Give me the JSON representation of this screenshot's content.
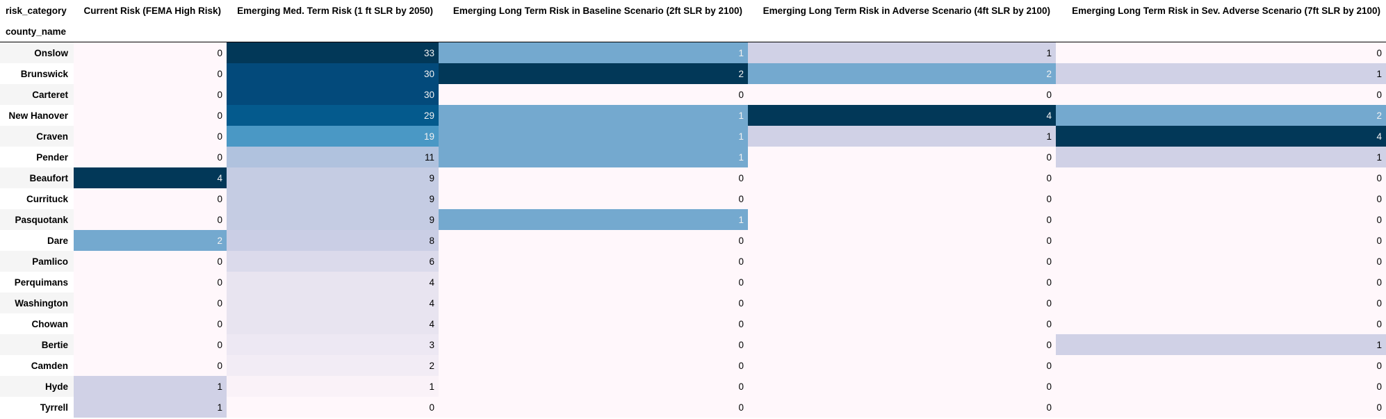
{
  "table": {
    "columns_index_name": "risk_category",
    "index_name": "county_name",
    "columns": [
      "Current Risk (FEMA High Risk)",
      "Emerging Med. Term Risk (1 ft SLR by 2050)",
      "Emerging Long Term Risk in Baseline Scenario (2ft SLR by 2100)",
      "Emerging Long Term Risk in Adverse Scenario (4ft SLR by 2100)",
      "Emerging Long Term Risk in Sev. Adverse Scenario (7ft SLR by 2100)"
    ],
    "rows": [
      {
        "county": "Onslow",
        "values": [
          0,
          33,
          1,
          1,
          0
        ]
      },
      {
        "county": "Brunswick",
        "values": [
          0,
          30,
          2,
          2,
          1
        ]
      },
      {
        "county": "Carteret",
        "values": [
          0,
          30,
          0,
          0,
          0
        ]
      },
      {
        "county": "New Hanover",
        "values": [
          0,
          29,
          1,
          4,
          2
        ]
      },
      {
        "county": "Craven",
        "values": [
          0,
          19,
          1,
          1,
          4
        ]
      },
      {
        "county": "Pender",
        "values": [
          0,
          11,
          1,
          0,
          1
        ]
      },
      {
        "county": "Beaufort",
        "values": [
          4,
          9,
          0,
          0,
          0
        ]
      },
      {
        "county": "Currituck",
        "values": [
          0,
          9,
          0,
          0,
          0
        ]
      },
      {
        "county": "Pasquotank",
        "values": [
          0,
          9,
          1,
          0,
          0
        ]
      },
      {
        "county": "Dare",
        "values": [
          2,
          8,
          0,
          0,
          0
        ]
      },
      {
        "county": "Pamlico",
        "values": [
          0,
          6,
          0,
          0,
          0
        ]
      },
      {
        "county": "Perquimans",
        "values": [
          0,
          4,
          0,
          0,
          0
        ]
      },
      {
        "county": "Washington",
        "values": [
          0,
          4,
          0,
          0,
          0
        ]
      },
      {
        "county": "Chowan",
        "values": [
          0,
          4,
          0,
          0,
          0
        ]
      },
      {
        "county": "Bertie",
        "values": [
          0,
          3,
          0,
          0,
          1
        ]
      },
      {
        "county": "Camden",
        "values": [
          0,
          2,
          0,
          0,
          0
        ]
      },
      {
        "county": "Hyde",
        "values": [
          1,
          1,
          0,
          0,
          0
        ]
      },
      {
        "county": "Tyrrell",
        "values": [
          1,
          0,
          0,
          0,
          0
        ]
      }
    ]
  },
  "colors": {
    "colormap": "PuBu",
    "cell_colors": [
      [
        "#fff7fb",
        "#023858",
        "#74a9cf",
        "#d0d1e6",
        "#fff7fb"
      ],
      [
        "#fff7fb",
        "#034a7b",
        "#023858",
        "#74a9cf",
        "#d0d1e6"
      ],
      [
        "#fff7fb",
        "#034a7b",
        "#fff7fb",
        "#fff7fb",
        "#fff7fb"
      ],
      [
        "#fff7fb",
        "#045a8d",
        "#74a9cf",
        "#023858",
        "#74a9cf"
      ],
      [
        "#fff7fb",
        "#4a98c5",
        "#74a9cf",
        "#d0d1e6",
        "#023858"
      ],
      [
        "#fff7fb",
        "#b0c2de",
        "#74a9cf",
        "#fff7fb",
        "#d0d1e6"
      ],
      [
        "#023858",
        "#c5cce3",
        "#fff7fb",
        "#fff7fb",
        "#fff7fb"
      ],
      [
        "#fff7fb",
        "#c5cce3",
        "#fff7fb",
        "#fff7fb",
        "#fff7fb"
      ],
      [
        "#fff7fb",
        "#c5cce3",
        "#74a9cf",
        "#fff7fb",
        "#fff7fb"
      ],
      [
        "#74a9cf",
        "#cacee5",
        "#fff7fb",
        "#fff7fb",
        "#fff7fb"
      ],
      [
        "#fff7fb",
        "#dbdaeb",
        "#fff7fb",
        "#fff7fb",
        "#fff7fb"
      ],
      [
        "#fff7fb",
        "#e8e4f0",
        "#fff7fb",
        "#fff7fb",
        "#fff7fb"
      ],
      [
        "#fff7fb",
        "#e8e4f0",
        "#fff7fb",
        "#fff7fb",
        "#fff7fb"
      ],
      [
        "#fff7fb",
        "#e8e4f0",
        "#fff7fb",
        "#fff7fb",
        "#fff7fb"
      ],
      [
        "#fff7fb",
        "#ede8f3",
        "#fff7fb",
        "#fff7fb",
        "#d0d1e6"
      ],
      [
        "#fff7fb",
        "#f2ecf5",
        "#fff7fb",
        "#fff7fb",
        "#fff7fb"
      ],
      [
        "#d0d1e6",
        "#faf2f8",
        "#fff7fb",
        "#fff7fb",
        "#fff7fb"
      ],
      [
        "#d0d1e6",
        "#fff7fb",
        "#fff7fb",
        "#fff7fb",
        "#fff7fb"
      ]
    ],
    "text_colors": [
      [
        "#000000",
        "#f1f1f1",
        "#f1f1f1",
        "#000000",
        "#000000"
      ],
      [
        "#000000",
        "#f1f1f1",
        "#f1f1f1",
        "#f1f1f1",
        "#000000"
      ],
      [
        "#000000",
        "#f1f1f1",
        "#000000",
        "#000000",
        "#000000"
      ],
      [
        "#000000",
        "#f1f1f1",
        "#f1f1f1",
        "#f1f1f1",
        "#f1f1f1"
      ],
      [
        "#000000",
        "#f1f1f1",
        "#f1f1f1",
        "#000000",
        "#f1f1f1"
      ],
      [
        "#000000",
        "#000000",
        "#f1f1f1",
        "#000000",
        "#000000"
      ],
      [
        "#f1f1f1",
        "#000000",
        "#000000",
        "#000000",
        "#000000"
      ],
      [
        "#000000",
        "#000000",
        "#000000",
        "#000000",
        "#000000"
      ],
      [
        "#000000",
        "#000000",
        "#f1f1f1",
        "#000000",
        "#000000"
      ],
      [
        "#f1f1f1",
        "#000000",
        "#000000",
        "#000000",
        "#000000"
      ],
      [
        "#000000",
        "#000000",
        "#000000",
        "#000000",
        "#000000"
      ],
      [
        "#000000",
        "#000000",
        "#000000",
        "#000000",
        "#000000"
      ],
      [
        "#000000",
        "#000000",
        "#000000",
        "#000000",
        "#000000"
      ],
      [
        "#000000",
        "#000000",
        "#000000",
        "#000000",
        "#000000"
      ],
      [
        "#000000",
        "#000000",
        "#000000",
        "#000000",
        "#000000"
      ],
      [
        "#000000",
        "#000000",
        "#000000",
        "#000000",
        "#000000"
      ],
      [
        "#000000",
        "#000000",
        "#000000",
        "#000000",
        "#000000"
      ],
      [
        "#000000",
        "#000000",
        "#000000",
        "#000000",
        "#000000"
      ]
    ]
  }
}
